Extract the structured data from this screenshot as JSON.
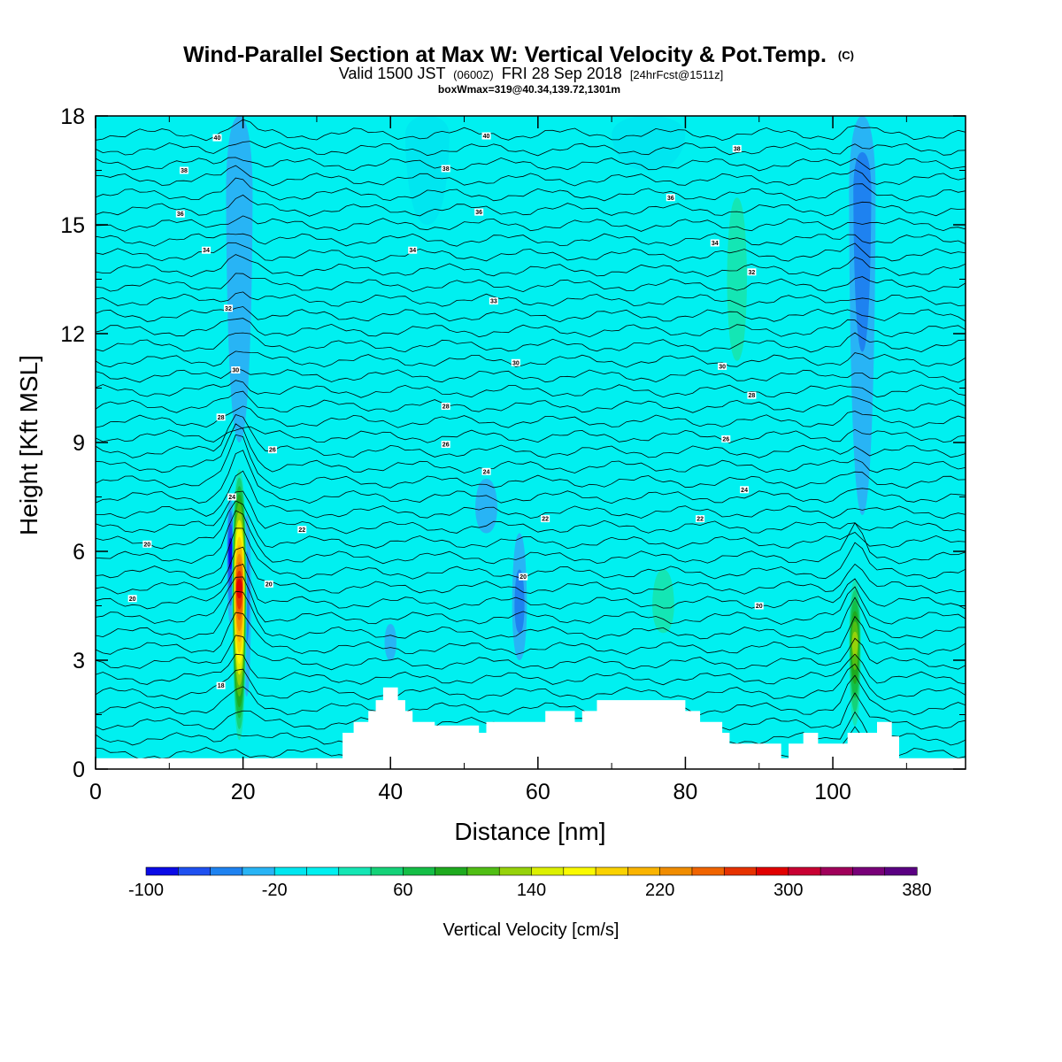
{
  "chart_data": {
    "type": "heatmap",
    "title": "Wind-Parallel Section at Max W: Vertical Velocity & Pot.Temp.",
    "title_suffix": "(C)",
    "subtitle_main": "Valid 1500 JST",
    "subtitle_z": "(0600Z)",
    "subtitle_date": "FRI 28 Sep 2018",
    "subtitle_fcst": "[24hrFcst@1511z]",
    "subtitle2": "boxWmax=319@40.34,139.72,1301m",
    "xlabel": "Distance [nm]",
    "ylabel": "Height [Kft MSL]",
    "xlim": [
      0,
      118
    ],
    "ylim": [
      0,
      18
    ],
    "xticks": [
      "0",
      "20",
      "40",
      "60",
      "80",
      "100"
    ],
    "xtick_values": [
      0,
      20,
      40,
      60,
      80,
      100
    ],
    "yticks": [
      "0",
      "3",
      "6",
      "9",
      "12",
      "15",
      "18"
    ],
    "ytick_values": [
      0,
      3,
      6,
      9,
      12,
      15,
      18
    ],
    "colorbar": {
      "title": "Vertical Velocity [cm/s]",
      "labels": [
        "-100",
        "-20",
        "60",
        "140",
        "220",
        "300",
        "380"
      ],
      "label_values": [
        -100,
        -20,
        60,
        140,
        220,
        300,
        380
      ],
      "colors": [
        "#0a0ae6",
        "#1e50f0",
        "#1e82f0",
        "#28b4f5",
        "#00e6f0",
        "#00f0f0",
        "#14e6b4",
        "#14d278",
        "#14be46",
        "#1eaa1e",
        "#50be14",
        "#96d20a",
        "#dcf000",
        "#fafa00",
        "#fad200",
        "#fab400",
        "#f08c00",
        "#f06400",
        "#e63200",
        "#e10000",
        "#c80032",
        "#a0005a",
        "#780078",
        "#5a0082"
      ]
    },
    "background_color": "#00f0f0",
    "terrain_color": "#ffffff",
    "updrafts": [
      {
        "x": 19.5,
        "y0": 0.5,
        "y1": 8.5,
        "halfwidth": 1.0,
        "peak": 300,
        "peak_y": 5.0
      },
      {
        "x": 103,
        "y0": 0.8,
        "y1": 5.5,
        "halfwidth": 0.9,
        "peak": 140,
        "peak_y": 3.5
      },
      {
        "x": 77,
        "y0": 3.0,
        "y1": 6.5,
        "halfwidth": 2.2,
        "peak": 40,
        "peak_y": 4.5
      },
      {
        "x": 87,
        "y0": 9.0,
        "y1": 18,
        "halfwidth": 2.0,
        "peak": 40,
        "peak_y": 13.5
      },
      {
        "x": 62,
        "y0": 3.0,
        "y1": 6.5,
        "halfwidth": 1.8,
        "peak": 20,
        "peak_y": 5.0
      },
      {
        "x": 50,
        "y0": 2.5,
        "y1": 5.5,
        "halfwidth": 1.5,
        "peak": 20,
        "peak_y": 4.0
      },
      {
        "x": 86,
        "y0": 2.0,
        "y1": 5.0,
        "halfwidth": 1.2,
        "peak": 20,
        "peak_y": 3.5
      },
      {
        "x": 95,
        "y0": 1.0,
        "y1": 4.0,
        "halfwidth": 3.0,
        "peak": 0,
        "peak_y": 2.5
      }
    ],
    "downdrafts": [
      {
        "x": 18.3,
        "y0": 4.0,
        "y1": 7.5,
        "halfwidth": 0.5,
        "peak": -90,
        "peak_y": 6.0
      },
      {
        "x": 20.5,
        "y0": 2.0,
        "y1": 7.0,
        "halfwidth": 0.6,
        "peak": -50,
        "peak_y": 5.0
      },
      {
        "x": 19.5,
        "y0": 9.0,
        "y1": 18,
        "halfwidth": 1.8,
        "peak": -35,
        "peak_y": 16.0
      },
      {
        "x": 104,
        "y0": 7.0,
        "y1": 18,
        "halfwidth": 1.8,
        "peak": -50,
        "peak_y": 16.0
      },
      {
        "x": 57.5,
        "y0": 3.0,
        "y1": 6.5,
        "halfwidth": 1.0,
        "peak": -50,
        "peak_y": 4.5
      },
      {
        "x": 53,
        "y0": 6.5,
        "y1": 8.0,
        "halfwidth": 1.5,
        "peak": -40,
        "peak_y": 7.2
      },
      {
        "x": 40,
        "y0": 3.0,
        "y1": 4.0,
        "halfwidth": 0.8,
        "peak": -30,
        "peak_y": 3.5
      },
      {
        "x": 45,
        "y0": 15.0,
        "y1": 18,
        "halfwidth": 3.0,
        "peak": -20,
        "peak_y": 17.5
      },
      {
        "x": 75,
        "y0": 16.5,
        "y1": 18,
        "halfwidth": 5.0,
        "peak": -20,
        "peak_y": 17.5
      }
    ],
    "terrain": [
      [
        0,
        0.3
      ],
      [
        33.5,
        0.3
      ],
      [
        33.5,
        1.0
      ],
      [
        35,
        1.0
      ],
      [
        35,
        1.3
      ],
      [
        37,
        1.3
      ],
      [
        37,
        1.6
      ],
      [
        38,
        1.6
      ],
      [
        38,
        1.9
      ],
      [
        39,
        1.9
      ],
      [
        39,
        2.25
      ],
      [
        41,
        2.25
      ],
      [
        41,
        1.9
      ],
      [
        42,
        1.9
      ],
      [
        42,
        1.6
      ],
      [
        43,
        1.6
      ],
      [
        43,
        1.3
      ],
      [
        46,
        1.3
      ],
      [
        46,
        1.2
      ],
      [
        52,
        1.2
      ],
      [
        52,
        1.0
      ],
      [
        53,
        1.0
      ],
      [
        53,
        1.3
      ],
      [
        61,
        1.3
      ],
      [
        61,
        1.6
      ],
      [
        65,
        1.6
      ],
      [
        65,
        1.3
      ],
      [
        66,
        1.3
      ],
      [
        66,
        1.6
      ],
      [
        68,
        1.6
      ],
      [
        68,
        1.9
      ],
      [
        80,
        1.9
      ],
      [
        80,
        1.6
      ],
      [
        82,
        1.6
      ],
      [
        82,
        1.3
      ],
      [
        85,
        1.3
      ],
      [
        85,
        1.0
      ],
      [
        86,
        1.0
      ],
      [
        86,
        0.7
      ],
      [
        93,
        0.7
      ],
      [
        93,
        0.3
      ],
      [
        94,
        0.3
      ],
      [
        94,
        0.7
      ],
      [
        96,
        0.7
      ],
      [
        96,
        1.0
      ],
      [
        98,
        1.0
      ],
      [
        98,
        0.7
      ],
      [
        102,
        0.7
      ],
      [
        102,
        1.0
      ],
      [
        106,
        1.0
      ],
      [
        106,
        1.3
      ],
      [
        108,
        1.3
      ],
      [
        108,
        0.9
      ],
      [
        109,
        0.9
      ],
      [
        109,
        0.3
      ],
      [
        118,
        0.3
      ]
    ],
    "contour_labels": [
      {
        "text": "40",
        "x": 16.5,
        "y": 17.4
      },
      {
        "text": "40",
        "x": 53.0,
        "y": 17.45
      },
      {
        "text": "38",
        "x": 12.0,
        "y": 16.5
      },
      {
        "text": "38",
        "x": 47.5,
        "y": 16.55
      },
      {
        "text": "38",
        "x": 87.0,
        "y": 17.1
      },
      {
        "text": "36",
        "x": 11.5,
        "y": 15.3
      },
      {
        "text": "36",
        "x": 52.0,
        "y": 15.35
      },
      {
        "text": "36",
        "x": 78.0,
        "y": 15.75
      },
      {
        "text": "34",
        "x": 15.0,
        "y": 14.3
      },
      {
        "text": "34",
        "x": 43.0,
        "y": 14.3
      },
      {
        "text": "34",
        "x": 84.0,
        "y": 14.5
      },
      {
        "text": "32",
        "x": 18.0,
        "y": 12.7
      },
      {
        "text": "33",
        "x": 54.0,
        "y": 12.9
      },
      {
        "text": "32",
        "x": 89.0,
        "y": 13.7
      },
      {
        "text": "30",
        "x": 19.0,
        "y": 11.0
      },
      {
        "text": "30",
        "x": 57.0,
        "y": 11.2
      },
      {
        "text": "30",
        "x": 85.0,
        "y": 11.1
      },
      {
        "text": "28",
        "x": 17.0,
        "y": 9.7
      },
      {
        "text": "28",
        "x": 47.5,
        "y": 10.0
      },
      {
        "text": "28",
        "x": 89.0,
        "y": 10.3
      },
      {
        "text": "26",
        "x": 24.0,
        "y": 8.8
      },
      {
        "text": "26",
        "x": 47.5,
        "y": 8.95
      },
      {
        "text": "26",
        "x": 85.5,
        "y": 9.1
      },
      {
        "text": "24",
        "x": 18.5,
        "y": 7.5
      },
      {
        "text": "24",
        "x": 53.0,
        "y": 8.2
      },
      {
        "text": "24",
        "x": 88.0,
        "y": 7.7
      },
      {
        "text": "22",
        "x": 28.0,
        "y": 6.6
      },
      {
        "text": "22",
        "x": 61.0,
        "y": 6.9
      },
      {
        "text": "22",
        "x": 82.0,
        "y": 6.9
      },
      {
        "text": "20",
        "x": 7.0,
        "y": 6.2
      },
      {
        "text": "20",
        "x": 23.5,
        "y": 5.1
      },
      {
        "text": "20",
        "x": 58.0,
        "y": 5.3
      },
      {
        "text": "20",
        "x": 90.0,
        "y": 4.5
      },
      {
        "text": "20",
        "x": 5.0,
        "y": 4.7
      },
      {
        "text": "18",
        "x": 17.0,
        "y": 2.3
      }
    ],
    "contours_per_1000ft": 2.4
  }
}
